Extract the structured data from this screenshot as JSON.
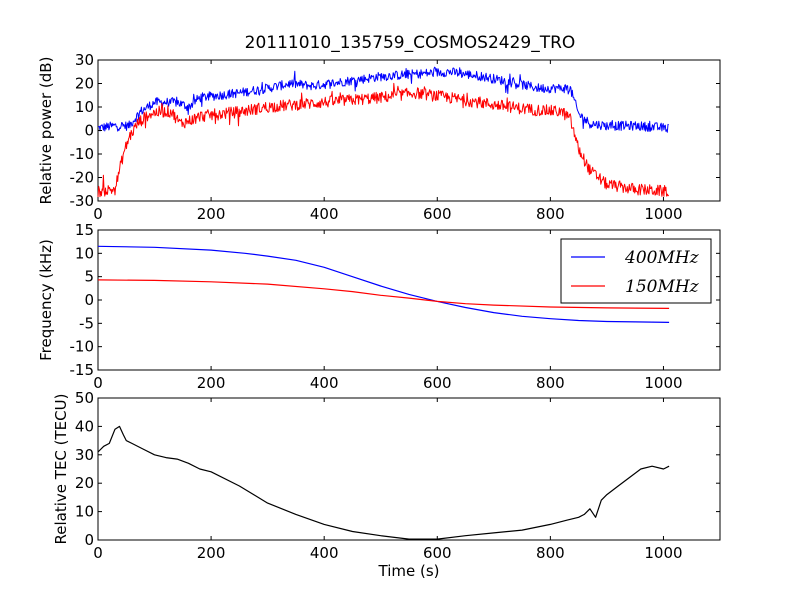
{
  "chart_data": {
    "title": "20111010_135759_COSMOS2429_TRO",
    "subplots": [
      {
        "type": "line",
        "ylabel": "Relative power (dB)",
        "xlim": [
          0,
          1100
        ],
        "ylim": [
          -30,
          30
        ],
        "xticks": [
          0,
          200,
          400,
          600,
          800,
          1000
        ],
        "yticks": [
          -30,
          -20,
          -10,
          0,
          10,
          20,
          30
        ],
        "series": [
          {
            "color": "#0000ff",
            "noise": 2.0,
            "x": [
              0,
              30,
              55,
              75,
              100,
              140,
              160,
              180,
              250,
              300,
              340,
              380,
              440,
              500,
              560,
              620,
              680,
              740,
              780,
              800,
              835,
              850,
              870,
              900,
              950,
              1010
            ],
            "y": [
              1,
              2,
              2,
              8,
              12,
              12,
              10,
              14,
              16,
              18,
              20,
              19,
              21,
              23,
              24,
              25,
              23,
              20,
              18,
              18,
              18,
              7,
              3,
              2,
              2,
              1
            ]
          },
          {
            "color": "#ff0000",
            "noise": 2.5,
            "x": [
              0,
              30,
              35,
              45,
              55,
              70,
              90,
              110,
              130,
              145,
              160,
              180,
              250,
              300,
              400,
              500,
              560,
              620,
              700,
              760,
              820,
              835,
              850,
              870,
              900,
              950,
              1010
            ],
            "y": [
              -26,
              -25,
              -20,
              -10,
              -3,
              3,
              7,
              8,
              8,
              3,
              4,
              6,
              8,
              10,
              12,
              14,
              16,
              14,
              11,
              9,
              8,
              5,
              -8,
              -17,
              -23,
              -25,
              -26
            ]
          }
        ]
      },
      {
        "type": "line",
        "ylabel": "Frequency (kHz)",
        "xlim": [
          0,
          1100
        ],
        "ylim": [
          -15,
          15
        ],
        "xticks": [
          0,
          200,
          400,
          600,
          800,
          1000
        ],
        "yticks": [
          -15,
          -10,
          -5,
          0,
          5,
          10,
          15
        ],
        "legend": "upper-right",
        "series": [
          {
            "name": "400MHz",
            "color": "#0000ff",
            "x": [
              0,
              100,
              200,
              260,
              300,
              350,
              400,
              450,
              500,
              550,
              600,
              650,
              700,
              750,
              800,
              850,
              900,
              950,
              1010
            ],
            "y": [
              11.5,
              11.3,
              10.7,
              10.0,
              9.4,
              8.5,
              7.0,
              5.0,
              3.0,
              1.2,
              -0.3,
              -1.6,
              -2.7,
              -3.5,
              -4.0,
              -4.4,
              -4.6,
              -4.7,
              -4.8
            ]
          },
          {
            "name": "150MHz",
            "color": "#ff0000",
            "x": [
              0,
              100,
              200,
              300,
              400,
              450,
              500,
              550,
              600,
              650,
              700,
              800,
              900,
              1010
            ],
            "y": [
              4.3,
              4.2,
              3.9,
              3.4,
              2.4,
              1.8,
              1.0,
              0.4,
              -0.3,
              -0.8,
              -1.1,
              -1.5,
              -1.7,
              -1.8
            ]
          }
        ]
      },
      {
        "type": "line",
        "ylabel": "Relative TEC (TECU)",
        "xlabel": "Time (s)",
        "xlim": [
          0,
          1100
        ],
        "ylim": [
          0,
          50
        ],
        "xticks": [
          0,
          200,
          400,
          600,
          800,
          1000
        ],
        "yticks": [
          0,
          10,
          20,
          30,
          40,
          50
        ],
        "series": [
          {
            "color": "#000000",
            "x": [
              0,
              10,
              20,
              30,
              38,
              45,
              50,
              60,
              80,
              100,
              120,
              140,
              160,
              180,
              200,
              250,
              300,
              350,
              400,
              450,
              500,
              550,
              600,
              650,
              700,
              750,
              800,
              830,
              850,
              860,
              870,
              880,
              890,
              900,
              920,
              940,
              960,
              980,
              1000,
              1010
            ],
            "y": [
              31,
              33,
              34,
              39,
              40,
              37,
              35,
              34,
              32,
              30,
              29,
              28.5,
              27,
              25,
              24,
              19,
              13,
              9,
              5.5,
              3,
              1.5,
              0.3,
              0.3,
              1.5,
              2.5,
              3.5,
              5.5,
              7,
              8,
              9,
              11,
              8,
              14,
              16,
              19,
              22,
              25,
              26,
              25,
              26
            ]
          }
        ]
      }
    ]
  }
}
